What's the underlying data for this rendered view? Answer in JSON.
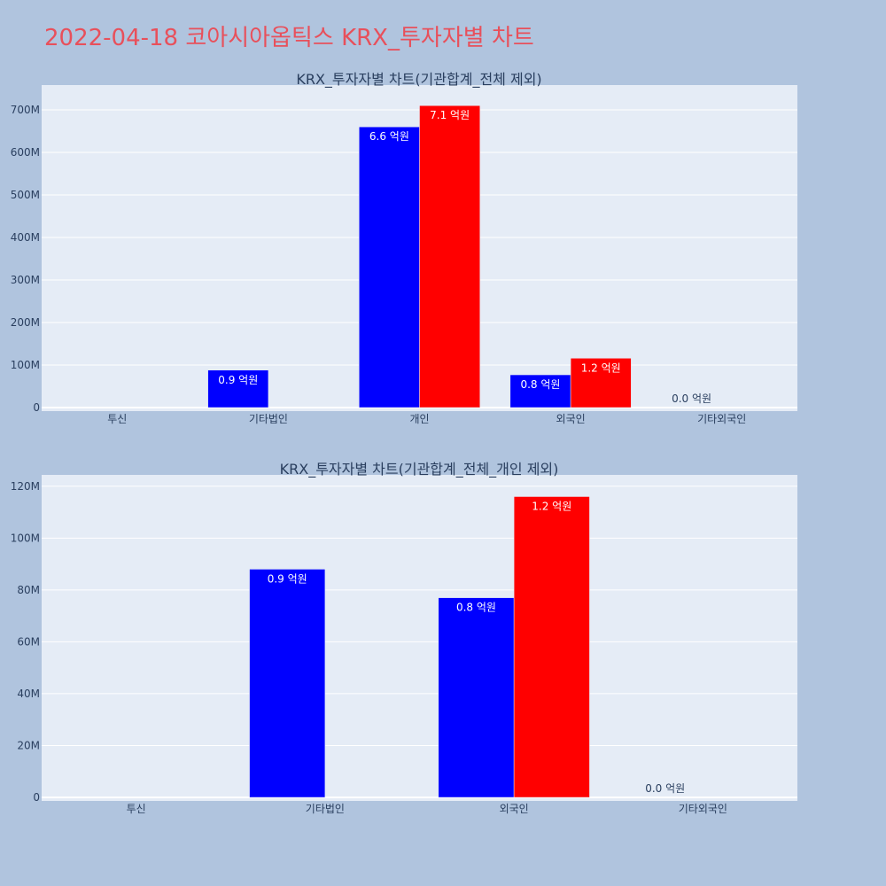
{
  "page": {
    "title": "2022-04-18 코아시아옵틱스 KRX_투자자별 차트"
  },
  "colors": {
    "background": "#b0c4de",
    "plot_background": "#e5ecf6",
    "title": "#e8505b",
    "series_blue": "#0000ff",
    "series_red": "#ff0000"
  },
  "chart_data": [
    {
      "type": "bar",
      "title": "KRX_투자자별 차트(기관합계_전체 제외)",
      "categories": [
        "투신",
        "기타법인",
        "개인",
        "외국인",
        "기타외국인"
      ],
      "ylim": [
        0,
        750000000
      ],
      "yticks": [
        0,
        100000000,
        200000000,
        300000000,
        400000000,
        500000000,
        600000000,
        700000000
      ],
      "ytick_labels": [
        "0",
        "100M",
        "200M",
        "300M",
        "400M",
        "500M",
        "600M",
        "700M"
      ],
      "grid": true,
      "series": [
        {
          "color": "#0000ff",
          "values": [
            0,
            88000000,
            660000000,
            77000000,
            0
          ],
          "labels": [
            "",
            "0.9 억원",
            "6.6 억원",
            "0.8 억원",
            "0.0 억원"
          ]
        },
        {
          "color": "#ff0000",
          "values": [
            0,
            0,
            710000000,
            116000000,
            0
          ],
          "labels": [
            "",
            "",
            "7.1 억원",
            "1.2 억원",
            ""
          ]
        }
      ]
    },
    {
      "type": "bar",
      "title": "KRX_투자자별 차트(기관합계_전체_개인 제외)",
      "categories": [
        "투신",
        "기타법인",
        "외국인",
        "기타외국인"
      ],
      "ylim": [
        0,
        123000000
      ],
      "yticks": [
        0,
        20000000,
        40000000,
        60000000,
        80000000,
        100000000,
        120000000
      ],
      "ytick_labels": [
        "0",
        "20M",
        "40M",
        "60M",
        "80M",
        "100M",
        "120M"
      ],
      "grid": true,
      "series": [
        {
          "color": "#0000ff",
          "values": [
            0,
            88000000,
            77000000,
            0
          ],
          "labels": [
            "",
            "0.9 억원",
            "0.8 억원",
            "0.0 억원"
          ]
        },
        {
          "color": "#ff0000",
          "values": [
            0,
            0,
            116000000,
            0
          ],
          "labels": [
            "",
            "",
            "1.2 억원",
            ""
          ]
        }
      ]
    }
  ]
}
